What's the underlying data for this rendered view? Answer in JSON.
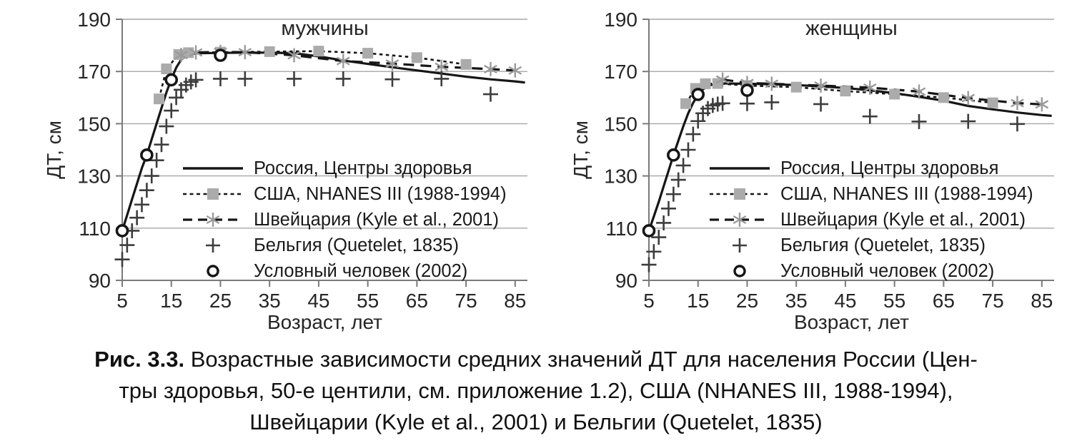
{
  "colors": {
    "line": "#161616",
    "gray_marker": "#ababab",
    "asterisk_marker": "#9a9a9a",
    "plus_marker": "#3d3d3d",
    "grid": "#a6a6a6",
    "axis": "#7a7a7a",
    "text": "#262626"
  },
  "caption": {
    "label": "Рис. 3.3.",
    "line1_rest": " Возрастные зависимости средних значений ДТ для населения России (Цен-",
    "line2": "тры здоровья, 50-е центили, см. приложение 1.2), США (NHANES III, 1988-1994),",
    "line3": "Швейцарии (Kyle et al., 2001) и Бельгии (Quetelet, 1835)"
  },
  "chart_data": [
    {
      "type": "line",
      "title": "мужчины",
      "xlabel": "Возраст, лет",
      "ylabel": "ДТ, см",
      "xlim": [
        5,
        87.5
      ],
      "ylim": [
        90,
        190
      ],
      "xticks": [
        5,
        15,
        25,
        35,
        45,
        55,
        65,
        75,
        85
      ],
      "yticks": [
        90,
        110,
        130,
        150,
        170,
        190
      ],
      "grid": "horizontal",
      "legend_position": "inside-lower-right",
      "series": [
        {
          "name": "Россия, Центры здоровья",
          "style": "solid-line",
          "x": [
            5,
            6,
            7,
            8,
            9,
            10,
            11,
            12,
            13,
            14,
            15,
            16,
            17,
            18,
            20,
            25,
            30,
            35,
            40,
            45,
            50,
            55,
            60,
            65,
            70,
            75,
            80,
            85,
            87
          ],
          "y": [
            109,
            115,
            121,
            127,
            133,
            138,
            144,
            150,
            156,
            162,
            167,
            171.5,
            174.5,
            176,
            177,
            177.1,
            177.2,
            177.2,
            177,
            175.8,
            174.2,
            172.9,
            171.6,
            170.4,
            169.2,
            168,
            167,
            166.2,
            165.8
          ]
        },
        {
          "name": "США, NHANES III (1988-1994)",
          "style": "dotted-line-square",
          "x": [
            12.5,
            14,
            16.5,
            18.5,
            25,
            35,
            45,
            55,
            65,
            75
          ],
          "y": [
            159.5,
            171,
            176.5,
            177.2,
            177.4,
            177.6,
            177.8,
            177,
            175.3,
            172.7
          ]
        },
        {
          "name": "Швейцария (Kyle et al., 2001)",
          "style": "dashed-line-asterisk",
          "x": [
            17,
            20,
            25,
            30,
            40,
            50,
            60,
            70,
            80,
            85
          ],
          "y": [
            176.3,
            177.3,
            177.5,
            177.4,
            176.2,
            174,
            173,
            171.8,
            170.9,
            170.4
          ]
        },
        {
          "name": "Бельгия (Quetelet, 1835)",
          "style": "plus-markers",
          "x": [
            5,
            6,
            7,
            8,
            9,
            10,
            11,
            12,
            13,
            14,
            15,
            16,
            17,
            18,
            19,
            20,
            25,
            30,
            40,
            50,
            60,
            70,
            80
          ],
          "y": [
            98,
            103.5,
            109,
            114,
            119,
            124.5,
            130,
            136,
            142,
            149,
            155,
            160,
            163,
            164.8,
            166,
            166.8,
            167.2,
            167.2,
            167.2,
            167.2,
            167,
            167.2,
            161.3
          ]
        },
        {
          "name": "Условный человек (2002)",
          "style": "circle-markers",
          "x": [
            5,
            10,
            15,
            25
          ],
          "y": [
            109,
            138,
            166.8,
            176.2
          ]
        }
      ]
    },
    {
      "type": "line",
      "title": "женщины",
      "xlabel": "Возраст, лет",
      "ylabel": "ДТ, см",
      "xlim": [
        5,
        87.5
      ],
      "ylim": [
        90,
        190
      ],
      "xticks": [
        5,
        15,
        25,
        35,
        45,
        55,
        65,
        75,
        85
      ],
      "yticks": [
        90,
        110,
        130,
        150,
        170,
        190
      ],
      "grid": "horizontal",
      "legend_position": "inside-lower-right",
      "series": [
        {
          "name": "Россия, Центры здоровья",
          "style": "solid-line",
          "x": [
            5,
            6,
            7,
            8,
            9,
            10,
            11,
            12,
            13,
            14,
            15,
            16,
            17,
            18,
            20,
            25,
            30,
            35,
            40,
            45,
            50,
            55,
            60,
            65,
            70,
            75,
            80,
            85,
            87
          ],
          "y": [
            109,
            114.5,
            120,
            126,
            132,
            138,
            143.5,
            149,
            154,
            158,
            161,
            163.2,
            164.4,
            165,
            165.4,
            165.3,
            165.1,
            164.8,
            164.3,
            163.7,
            162.8,
            161.7,
            160.3,
            158.8,
            156.8,
            155.5,
            154.3,
            153.3,
            153
          ]
        },
        {
          "name": "США, NHANES III (1988-1994)",
          "style": "dotted-line-square",
          "x": [
            12.5,
            14.5,
            16.5,
            19,
            25,
            35,
            45,
            55,
            65,
            75
          ],
          "y": [
            157.7,
            163.5,
            165.3,
            165.4,
            164.6,
            164,
            162.5,
            161.3,
            160,
            158
          ]
        },
        {
          "name": "Швейцария (Kyle et al., 2001)",
          "style": "dashed-line-asterisk",
          "x": [
            20,
            25,
            30,
            40,
            50,
            60,
            70,
            80,
            85
          ],
          "y": [
            166.9,
            165.6,
            165.3,
            164.6,
            163.8,
            162.3,
            159.8,
            157.9,
            157.4
          ]
        },
        {
          "name": "Бельгия (Quetelet, 1835)",
          "style": "plus-markers",
          "x": [
            5,
            6,
            7,
            8,
            9,
            10,
            11,
            12,
            13,
            14,
            15,
            16,
            17,
            18,
            19,
            20,
            25,
            30,
            40,
            50,
            60,
            70,
            80
          ],
          "y": [
            96,
            101,
            106.5,
            112,
            117.5,
            123,
            128.5,
            134,
            140,
            146,
            151,
            154,
            155.8,
            157,
            157.5,
            157.8,
            157.7,
            158.2,
            157.5,
            152.8,
            150.8,
            150.9,
            149.9
          ]
        },
        {
          "name": "Условный человек (2002)",
          "style": "circle-markers",
          "x": [
            5,
            10,
            15,
            25
          ],
          "y": [
            109,
            138,
            161.2,
            162.8
          ]
        }
      ]
    }
  ]
}
